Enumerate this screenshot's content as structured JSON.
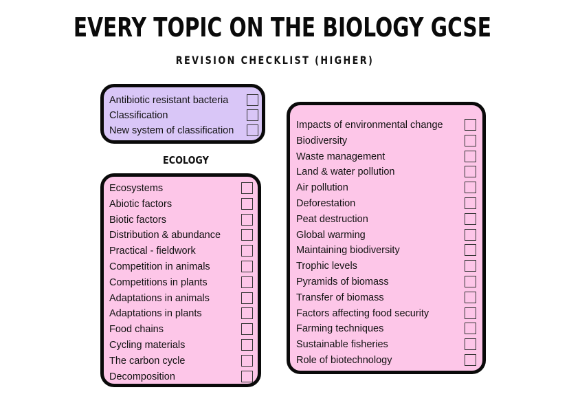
{
  "header": {
    "title": "EVERY TOPIC ON THE BIOLOGY GCSE",
    "subtitle": "REVISION CHECKLIST (HIGHER)"
  },
  "colors": {
    "purple_box": "#d9c6f7",
    "pink_box": "#fdc6e8",
    "border": "#0a0a0a"
  },
  "misc_box": {
    "items": [
      "Antibiotic resistant bacteria",
      "Classification",
      "New system of classification"
    ]
  },
  "ecology": {
    "heading": "ECOLOGY",
    "items": [
      "Ecosystems",
      "Abiotic factors",
      "Biotic factors",
      "Distribution & abundance",
      "Practical - fieldwork",
      "Competition in animals",
      "Competitions in plants",
      "Adaptations in animals",
      "Adaptations in plants",
      "Food chains",
      "Cycling materials",
      "The carbon cycle",
      "Decomposition"
    ]
  },
  "right_box": {
    "items": [
      "Impacts of environmental change",
      "Biodiversity",
      "Waste management",
      "Land & water pollution",
      "Air pollution",
      "Deforestation",
      "Peat destruction",
      "Global warming",
      "Maintaining biodiversity",
      "Trophic levels",
      "Pyramids of biomass",
      "Transfer of biomass",
      "Factors affecting food security",
      "Farming techniques",
      "Sustainable fisheries",
      "Role of biotechnology"
    ]
  }
}
